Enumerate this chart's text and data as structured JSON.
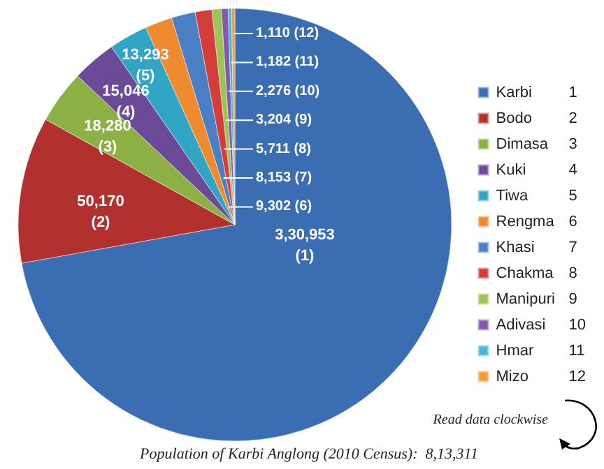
{
  "chart_data": {
    "type": "pie",
    "title": "Population of Karbi Anglong (2010 Census):  8,13,311",
    "annotations": [
      "Read data clockwise"
    ],
    "categories": [
      "Karbi 1",
      "Bodo 2",
      "Dimasa 3",
      "Kuki 4",
      "Tiwa 5",
      "Rengma 6",
      "Khasi 7",
      "Chakma 8",
      "Manipuri 9",
      "Adivasi 10",
      "Hmar 11",
      "Mizo 12"
    ],
    "values": [
      330953,
      50170,
      18280,
      15046,
      13293,
      9302,
      8153,
      5711,
      3204,
      2276,
      1182,
      1110
    ],
    "value_labels": [
      "3,30,953\n(1)",
      "50,170\n(2)",
      "18,280\n(3)",
      "15,046\n(4)",
      "13,293\n(5)",
      "9,302 (6)",
      "8,153 (7)",
      "5,711 (8)",
      "3,204 (9)",
      "2,276 (10)",
      "1,182 (11)",
      "1,110 (12)"
    ],
    "colors": [
      "#3b6db3",
      "#b2302d",
      "#8db044",
      "#6c4a98",
      "#31a6c4",
      "#ef8a2f",
      "#4a7fc5",
      "#d33d3a",
      "#9dc352",
      "#7f5aae",
      "#48b8d3",
      "#f49b3d"
    ],
    "legend": "right"
  }
}
